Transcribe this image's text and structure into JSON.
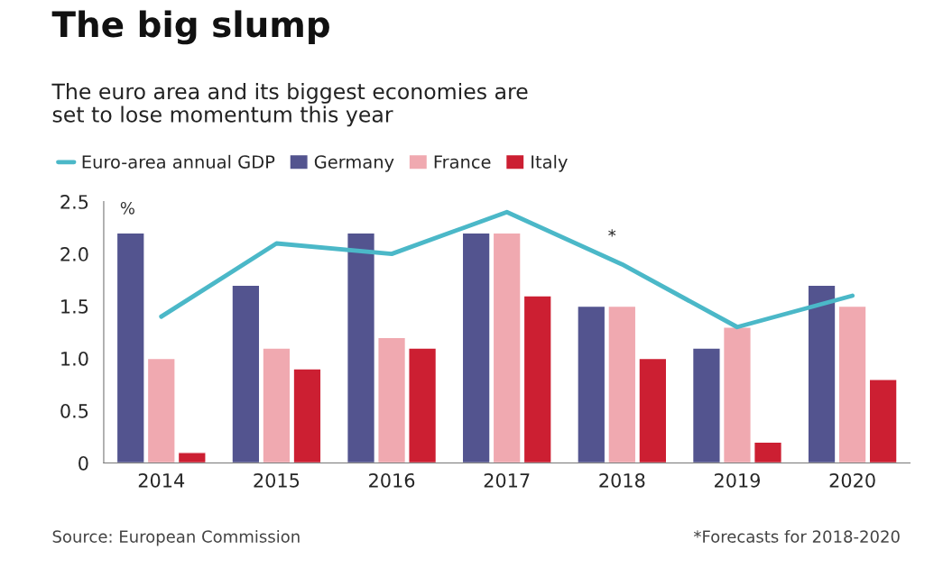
{
  "chart_data": {
    "type": "bar",
    "title": "The big slump",
    "subtitle": "The euro area and its biggest economies are\nset to lose momentum this year",
    "ylabel": "%",
    "categories": [
      "2014",
      "2015",
      "2016",
      "2017",
      "2018",
      "2019",
      "2020"
    ],
    "series": [
      {
        "name": "Euro-area annual GDP",
        "type": "line",
        "color": "#4bb8c8",
        "values": [
          1.4,
          2.1,
          2.0,
          2.4,
          1.9,
          1.3,
          1.6
        ]
      },
      {
        "name": "Germany",
        "color": "#53548f",
        "values": [
          2.2,
          1.7,
          2.2,
          2.2,
          1.5,
          1.1,
          1.7
        ]
      },
      {
        "name": "France",
        "color": "#f0a9b0",
        "values": [
          1.0,
          1.1,
          1.2,
          2.2,
          1.5,
          1.3,
          1.5
        ]
      },
      {
        "name": "Italy",
        "color": "#cc1f32",
        "values": [
          0.1,
          0.9,
          1.1,
          1.6,
          1.0,
          0.2,
          0.8
        ]
      }
    ],
    "ylim": [
      0,
      2.5
    ],
    "yticks": [
      0,
      0.5,
      {
        "value": 1,
        "label": "1.0"
      },
      1.5,
      {
        "value": 2,
        "label": "2.0"
      },
      2.5
    ],
    "grid": false,
    "legend": "top",
    "line_style": "solid",
    "marker": "none",
    "annotations": [
      {
        "text": "*",
        "x": "2018",
        "y": 1.9
      },
      "Source: European Commission",
      "*Forecasts for 2018-2020"
    ]
  }
}
